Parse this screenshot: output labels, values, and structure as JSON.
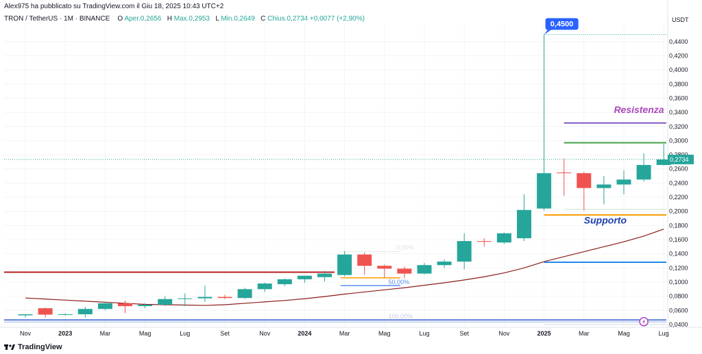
{
  "header": {
    "publisher_line": "Alex975 ha pubblicato su TradingView.com il Giu 18, 2025 10:43 UTC+2",
    "symbol": "TRON / TetherUS · 1M · BINANCE",
    "open_label": "O",
    "open": "Aper.0,2656",
    "high_label": "H",
    "high": "Max.0,2953",
    "low_label": "L",
    "low": "Min.0,2649",
    "close_label": "C",
    "close": "Chius.0,2734",
    "change": "+0,0077 (+2,90%)"
  },
  "footer": {
    "logo_text": "TradingView",
    "logo_mark": "17"
  },
  "colors": {
    "up": "#26a69a",
    "down": "#ef5350",
    "ma": "#8b1a1a",
    "resistance": "#7e57c2",
    "support": "#ff9800",
    "support_text": "#1e40af",
    "resistance_text": "#ab47bc",
    "green_line": "#43a047",
    "blue_line": "#1e88e5"
  },
  "chart_data": {
    "type": "candlestick",
    "title": "TRON / TetherUS · 1M · BINANCE",
    "currency_label": "USDT",
    "ylim": [
      0.038,
      0.466
    ],
    "y_ticks": [
      0.04,
      0.06,
      0.08,
      0.1,
      0.12,
      0.14,
      0.16,
      0.18,
      0.2,
      0.22,
      0.24,
      0.26,
      0.28,
      0.3,
      0.32,
      0.34,
      0.36,
      0.38,
      0.4,
      0.42,
      0.44
    ],
    "y_tick_labels": [
      "0,0400",
      "0,0600",
      "0,0800",
      "0,1000",
      "0,1200",
      "0,1400",
      "0,1600",
      "0,1800",
      "0,2000",
      "0,2200",
      "0,2400",
      "0,2600",
      "0,2800",
      "0,3000",
      "0,3200",
      "0,3400",
      "0,3600",
      "0,3800",
      "0,4000",
      "0,4200",
      "0,4400"
    ],
    "x_labels": [
      {
        "index": 0,
        "label": "Nov",
        "bold": false
      },
      {
        "index": 2,
        "label": "2023",
        "bold": true
      },
      {
        "index": 4,
        "label": "Mar",
        "bold": false
      },
      {
        "index": 6,
        "label": "Mag",
        "bold": false
      },
      {
        "index": 8,
        "label": "Lug",
        "bold": false
      },
      {
        "index": 10,
        "label": "Set",
        "bold": false
      },
      {
        "index": 12,
        "label": "Nov",
        "bold": false
      },
      {
        "index": 14,
        "label": "2024",
        "bold": true
      },
      {
        "index": 16,
        "label": "Mar",
        "bold": false
      },
      {
        "index": 18,
        "label": "Mag",
        "bold": false
      },
      {
        "index": 20,
        "label": "Lug",
        "bold": false
      },
      {
        "index": 22,
        "label": "Set",
        "bold": false
      },
      {
        "index": 24,
        "label": "Nov",
        "bold": false
      },
      {
        "index": 26,
        "label": "2025",
        "bold": true
      },
      {
        "index": 28,
        "label": "Mar",
        "bold": false
      },
      {
        "index": 30,
        "label": "Mag",
        "bold": false
      },
      {
        "index": 32,
        "label": "Lug",
        "bold": false
      }
    ],
    "candles": [
      {
        "o": 0.053,
        "h": 0.0545,
        "l": 0.05,
        "c": 0.0545
      },
      {
        "o": 0.063,
        "h": 0.064,
        "l": 0.05,
        "c": 0.054
      },
      {
        "o": 0.054,
        "h": 0.056,
        "l": 0.053,
        "c": 0.0545
      },
      {
        "o": 0.0545,
        "h": 0.065,
        "l": 0.05,
        "c": 0.062
      },
      {
        "o": 0.062,
        "h": 0.072,
        "l": 0.06,
        "c": 0.07
      },
      {
        "o": 0.07,
        "h": 0.074,
        "l": 0.056,
        "c": 0.066
      },
      {
        "o": 0.066,
        "h": 0.07,
        "l": 0.063,
        "c": 0.068
      },
      {
        "o": 0.068,
        "h": 0.08,
        "l": 0.066,
        "c": 0.076
      },
      {
        "o": 0.076,
        "h": 0.084,
        "l": 0.066,
        "c": 0.077
      },
      {
        "o": 0.077,
        "h": 0.095,
        "l": 0.072,
        "c": 0.079
      },
      {
        "o": 0.079,
        "h": 0.082,
        "l": 0.076,
        "c": 0.0775
      },
      {
        "o": 0.0775,
        "h": 0.092,
        "l": 0.076,
        "c": 0.09
      },
      {
        "o": 0.09,
        "h": 0.099,
        "l": 0.086,
        "c": 0.098
      },
      {
        "o": 0.097,
        "h": 0.105,
        "l": 0.094,
        "c": 0.104
      },
      {
        "o": 0.104,
        "h": 0.108,
        "l": 0.099,
        "c": 0.109
      },
      {
        "o": 0.107,
        "h": 0.116,
        "l": 0.101,
        "c": 0.112
      },
      {
        "o": 0.11,
        "h": 0.144,
        "l": 0.108,
        "c": 0.139
      },
      {
        "o": 0.139,
        "h": 0.142,
        "l": 0.11,
        "c": 0.123
      },
      {
        "o": 0.123,
        "h": 0.125,
        "l": 0.106,
        "c": 0.119
      },
      {
        "o": 0.119,
        "h": 0.122,
        "l": 0.105,
        "c": 0.112
      },
      {
        "o": 0.112,
        "h": 0.127,
        "l": 0.111,
        "c": 0.124
      },
      {
        "o": 0.124,
        "h": 0.132,
        "l": 0.12,
        "c": 0.129
      },
      {
        "o": 0.129,
        "h": 0.169,
        "l": 0.118,
        "c": 0.158
      },
      {
        "o": 0.158,
        "h": 0.162,
        "l": 0.15,
        "c": 0.157
      },
      {
        "o": 0.156,
        "h": 0.17,
        "l": 0.154,
        "c": 0.169
      },
      {
        "o": 0.162,
        "h": 0.224,
        "l": 0.158,
        "c": 0.202
      },
      {
        "o": 0.204,
        "h": 0.45,
        "l": 0.201,
        "c": 0.254
      },
      {
        "o": 0.255,
        "h": 0.275,
        "l": 0.222,
        "c": 0.254
      },
      {
        "o": 0.254,
        "h": 0.256,
        "l": 0.201,
        "c": 0.233
      },
      {
        "o": 0.233,
        "h": 0.25,
        "l": 0.21,
        "c": 0.238
      },
      {
        "o": 0.238,
        "h": 0.258,
        "l": 0.224,
        "c": 0.245
      },
      {
        "o": 0.245,
        "h": 0.282,
        "l": 0.242,
        "c": 0.2656
      },
      {
        "o": 0.2656,
        "h": 0.2953,
        "l": 0.2649,
        "c": 0.2734
      }
    ],
    "moving_average": [
      0.0775,
      0.076,
      0.0745,
      0.073,
      0.0715,
      0.07,
      0.0685,
      0.068,
      0.0675,
      0.067,
      0.068,
      0.07,
      0.072,
      0.074,
      0.0765,
      0.0795,
      0.083,
      0.086,
      0.089,
      0.092,
      0.0955,
      0.099,
      0.103,
      0.1075,
      0.113,
      0.12,
      0.129,
      0.136,
      0.143,
      0.15,
      0.157,
      0.165,
      0.175
    ],
    "horizontal_levels": [
      {
        "name": "ma-reference",
        "y": 0.114,
        "from": -0.5,
        "to": 15.5,
        "color": "#b71c1c"
      },
      {
        "name": "resistance",
        "y": 0.325,
        "from": 27,
        "to": 32.8,
        "color": "#7e57c2"
      },
      {
        "name": "green-level",
        "y": 0.297,
        "from": 27,
        "to": 32.8,
        "color": "#43a047"
      },
      {
        "name": "support",
        "y": 0.195,
        "from": 26,
        "to": 32.8,
        "color": "#ff9800"
      },
      {
        "name": "blue-level",
        "y": 0.128,
        "from": 26,
        "to": 32.8,
        "color": "#1e88e5"
      },
      {
        "name": "fib-100",
        "y": 0.0465,
        "from": -0.5,
        "to": 32.8,
        "color": "#5b7dd6"
      }
    ],
    "fib_levels": [
      {
        "label": "50,00%",
        "y": 0.095
      },
      {
        "label": "100,00%",
        "y": 0.0465
      }
    ],
    "fib_faint_label": "0,00%",
    "annotations": [
      {
        "label": "Resistenza",
        "x": 29.5,
        "y": 0.339
      },
      {
        "label": "Supporto",
        "x": 28.0,
        "y": 0.183
      }
    ],
    "max_marker": {
      "label": "0,4500",
      "index": 26,
      "y": 0.45
    },
    "last_price": {
      "label": "0,2734",
      "y": 0.2734
    }
  }
}
